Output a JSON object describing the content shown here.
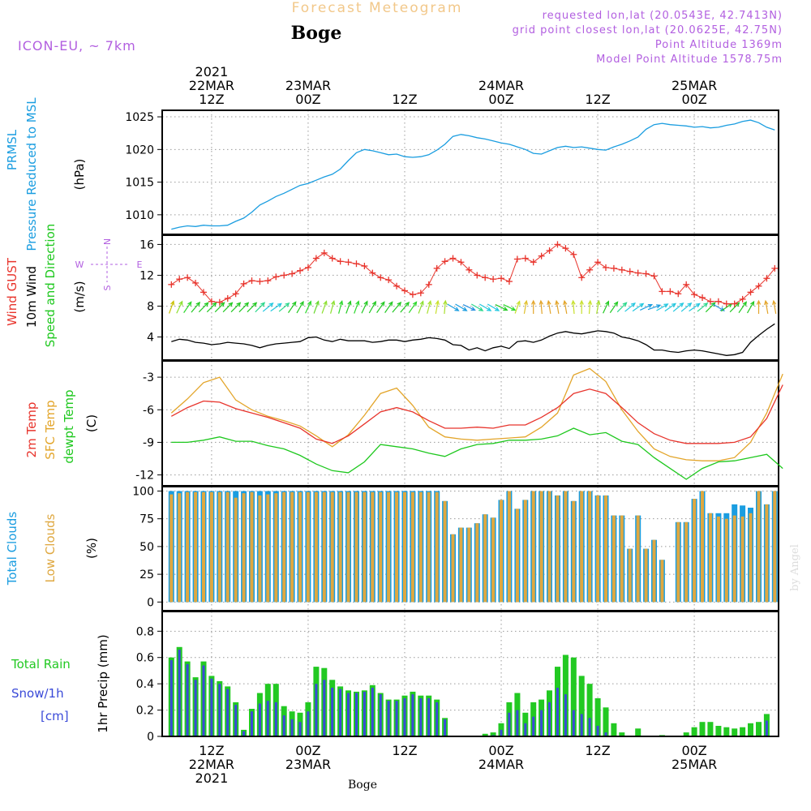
{
  "header": {
    "title": "Forecast Meteogram",
    "location": "Boge",
    "model": "ICON-EU, ~ 7km",
    "requested": "requested lon,lat (20.0543E, 42.7413N)",
    "grid_point": "grid point closest lon,lat (20.0625E, 42.75N)",
    "point_altitude": "Point Altitude 1369m",
    "model_altitude": "Model Point Altitude 1578.75m",
    "credit": "by Angel",
    "bottom_label": "Boge"
  },
  "colors": {
    "pressure": "#1a9de0",
    "gust": "#e8342c",
    "wind": "#000000",
    "temp": "#e8342c",
    "sfc": "#e3a52a",
    "dew": "#1ec81e",
    "total_cloud": "#1a9de0",
    "low_cloud": "#dfa840",
    "rain": "#22c922",
    "snow": "#3a4ad8",
    "title": "#f2c88a",
    "info": "#b25fe0"
  },
  "time_axis": {
    "top_labels": [
      {
        "h": 12,
        "lines": [
          "2021",
          "22MAR",
          "12Z"
        ]
      },
      {
        "h": 24,
        "lines": [
          "23MAR",
          "00Z"
        ]
      },
      {
        "h": 36,
        "lines": [
          "12Z"
        ]
      },
      {
        "h": 48,
        "lines": [
          "24MAR",
          "00Z"
        ]
      },
      {
        "h": 60,
        "lines": [
          "12Z"
        ]
      },
      {
        "h": 72,
        "lines": [
          "25MAR",
          "00Z"
        ]
      }
    ],
    "bottom_labels": [
      {
        "h": 12,
        "lines": [
          "12Z",
          "22MAR",
          "2021"
        ]
      },
      {
        "h": 24,
        "lines": [
          "00Z",
          "23MAR"
        ]
      },
      {
        "h": 36,
        "lines": [
          "12Z"
        ]
      },
      {
        "h": 48,
        "lines": [
          "00Z",
          "24MAR"
        ]
      },
      {
        "h": 60,
        "lines": [
          "12Z"
        ]
      },
      {
        "h": 72,
        "lines": [
          "00Z",
          "25MAR"
        ]
      }
    ]
  },
  "chart_data": [
    {
      "type": "line",
      "name": "pressure",
      "ylabel_lines": [
        "PRMSL",
        "Pressure Reduced to MSL"
      ],
      "unit": "(hPa)",
      "yticks": [
        1010,
        1015,
        1020,
        1025
      ],
      "ylim": [
        1007,
        1026
      ],
      "x_hours": [
        7,
        8,
        9,
        10,
        11,
        12,
        13,
        14,
        15,
        16,
        17,
        18,
        19,
        20,
        21,
        22,
        23,
        24,
        25,
        26,
        27,
        28,
        29,
        30,
        31,
        32,
        33,
        34,
        35,
        36,
        37,
        38,
        39,
        40,
        41,
        42,
        43,
        44,
        45,
        46,
        47,
        48,
        49,
        50,
        51,
        52,
        53,
        54,
        55,
        56,
        57,
        58,
        59,
        60,
        61,
        62,
        63,
        64,
        65,
        66,
        67,
        68,
        69,
        70,
        71,
        72,
        73,
        74,
        75,
        76,
        77,
        78,
        79,
        80,
        81,
        82
      ],
      "values": [
        1007.8,
        1008.1,
        1008.3,
        1008.2,
        1008.4,
        1008.3,
        1008.3,
        1008.4,
        1009.0,
        1009.5,
        1010.4,
        1011.5,
        1012.1,
        1012.8,
        1013.3,
        1013.9,
        1014.5,
        1014.8,
        1015.3,
        1015.8,
        1016.2,
        1017.0,
        1018.3,
        1019.5,
        1020.0,
        1019.8,
        1019.5,
        1019.2,
        1019.3,
        1018.9,
        1018.8,
        1018.9,
        1019.2,
        1019.9,
        1020.8,
        1022.0,
        1022.3,
        1022.1,
        1021.8,
        1021.6,
        1021.3,
        1021.0,
        1020.8,
        1020.4,
        1020.0,
        1019.4,
        1019.3,
        1019.8,
        1020.3,
        1020.5,
        1020.3,
        1020.4,
        1020.2,
        1020.0,
        1019.9,
        1020.4,
        1020.8,
        1021.3,
        1021.9,
        1023.1,
        1023.8,
        1024.0,
        1023.8,
        1023.7,
        1023.6,
        1023.4,
        1023.5,
        1023.3,
        1023.4,
        1023.7,
        1023.9,
        1024.3,
        1024.5,
        1024.1,
        1023.4,
        1023.0
      ]
    },
    {
      "type": "line",
      "name": "wind",
      "ylabel_lines": [
        "Wind GUST",
        "10m Wind",
        "Speed and Direction"
      ],
      "unit": "(m/s)",
      "compass": [
        "N",
        "S",
        "W",
        "E"
      ],
      "yticks": [
        4,
        8,
        12,
        16
      ],
      "ylim": [
        1,
        17.2
      ],
      "x_hours": [
        7,
        8,
        9,
        10,
        11,
        12,
        13,
        14,
        15,
        16,
        17,
        18,
        19,
        20,
        21,
        22,
        23,
        24,
        25,
        26,
        27,
        28,
        29,
        30,
        31,
        32,
        33,
        34,
        35,
        36,
        37,
        38,
        39,
        40,
        41,
        42,
        43,
        44,
        45,
        46,
        47,
        48,
        49,
        50,
        51,
        52,
        53,
        54,
        55,
        56,
        57,
        58,
        59,
        60,
        61,
        62,
        63,
        64,
        65,
        66,
        67,
        68,
        69,
        70,
        71,
        72,
        73,
        74,
        75,
        76,
        77,
        78,
        79,
        80,
        81,
        82
      ],
      "gust": [
        10.8,
        11.5,
        11.7,
        11.0,
        9.8,
        8.6,
        8.5,
        9.0,
        9.6,
        10.9,
        11.3,
        11.2,
        11.3,
        11.8,
        12.0,
        12.2,
        12.6,
        13.0,
        14.2,
        14.9,
        14.2,
        13.8,
        13.7,
        13.5,
        13.2,
        12.3,
        11.7,
        11.4,
        10.6,
        10.0,
        9.5,
        9.7,
        10.8,
        12.9,
        13.8,
        14.2,
        13.7,
        12.7,
        12.0,
        11.7,
        11.5,
        11.6,
        11.2,
        14.1,
        14.2,
        13.7,
        14.5,
        15.2,
        16.0,
        15.5,
        14.7,
        11.7,
        12.7,
        13.7,
        13.0,
        12.9,
        12.7,
        12.5,
        12.3,
        12.2,
        11.9,
        9.9,
        9.9,
        9.6,
        10.8,
        9.5,
        9.1,
        8.6,
        8.6,
        8.3,
        8.3,
        8.9,
        9.8,
        10.6,
        11.6,
        12.9
      ],
      "speed": [
        3.4,
        3.7,
        3.6,
        3.3,
        3.2,
        3.0,
        3.1,
        3.3,
        3.2,
        3.1,
        2.9,
        2.6,
        2.9,
        3.1,
        3.2,
        3.3,
        3.4,
        3.9,
        4.0,
        3.6,
        3.4,
        3.7,
        3.5,
        3.5,
        3.5,
        3.3,
        3.4,
        3.6,
        3.6,
        3.4,
        3.6,
        3.7,
        3.9,
        3.8,
        3.6,
        3.0,
        2.9,
        2.3,
        2.6,
        2.2,
        2.6,
        2.8,
        2.5,
        3.4,
        3.5,
        3.3,
        3.6,
        4.1,
        4.5,
        4.7,
        4.5,
        4.4,
        4.6,
        4.8,
        4.7,
        4.5,
        4.0,
        3.8,
        3.5,
        3.0,
        2.3,
        2.3,
        2.1,
        2.0,
        2.2,
        2.3,
        2.2,
        2.0,
        1.8,
        1.6,
        1.7,
        2.0,
        3.3,
        4.2,
        5.0,
        5.7
      ],
      "arrow_colors": [
        "#c8c000",
        "#8ce02e",
        "#2cd82c",
        "#22c922",
        "#22c922",
        "#22c922",
        "#22c922",
        "#22c922",
        "#22c922",
        "#22c922",
        "#22c922",
        "#2cd88c",
        "#22c8e0",
        "#22c8e0",
        "#2cd88c",
        "#22c922",
        "#22c922",
        "#2cd82c",
        "#66d82c",
        "#8ce02e",
        "#8ce02e",
        "#2cd82c",
        "#22c922",
        "#2cd82c",
        "#22c922",
        "#22c922",
        "#22c922",
        "#22c922",
        "#22c922",
        "#22c922",
        "#2cd82c",
        "#8ce02e",
        "#a8e02c",
        "#c8e02c",
        "#a8e02c",
        "#1a9de0",
        "#1a9de0",
        "#2a90e0",
        "#2cd88c",
        "#22c8e0",
        "#22c8e0",
        "#22c922",
        "#2cd82c",
        "#c8e02c",
        "#e0c02c",
        "#e3a52a",
        "#e3a52a",
        "#e3a52a",
        "#e3a52a",
        "#e3a52a",
        "#c8e02c",
        "#c8e02c",
        "#c8e02c",
        "#a8e02c",
        "#22c922",
        "#22c922",
        "#2cd88c",
        "#22c8e0",
        "#22c8e0",
        "#1a9de0",
        "#1a9de0",
        "#22c8e0",
        "#22c8e0",
        "#22c8e0",
        "#22c8e0",
        "#22c8e0",
        "#2cd88c",
        "#22c922",
        "#2a90e0",
        "#22c922",
        "#22c922",
        "#22c922",
        "#22c922",
        "#e3a52a",
        "#e3a52a",
        "#e3a52a"
      ],
      "arrow_dirs_deg": [
        200,
        205,
        215,
        220,
        225,
        225,
        225,
        225,
        225,
        225,
        225,
        225,
        230,
        235,
        230,
        215,
        210,
        205,
        200,
        200,
        195,
        195,
        200,
        200,
        205,
        210,
        215,
        215,
        220,
        220,
        215,
        200,
        195,
        190,
        185,
        300,
        300,
        295,
        300,
        300,
        300,
        295,
        295,
        200,
        190,
        180,
        175,
        170,
        170,
        170,
        175,
        180,
        185,
        190,
        205,
        215,
        225,
        230,
        235,
        245,
        250,
        240,
        235,
        230,
        230,
        235,
        230,
        225,
        300,
        235,
        225,
        215,
        210,
        180,
        170,
        170
      ]
    },
    {
      "type": "line",
      "name": "temperature",
      "ylabel_lines": [
        "2m Temp",
        "SFC Temp",
        "dewpt Temp"
      ],
      "unit": "(C)",
      "yticks": [
        -3,
        -6,
        -9,
        -12
      ],
      "ylim": [
        -13,
        -1.5
      ],
      "x_hours": [
        7,
        9,
        11,
        13,
        15,
        17,
        19,
        21,
        23,
        25,
        27,
        29,
        31,
        33,
        35,
        37,
        39,
        41,
        43,
        45,
        47,
        49,
        51,
        53,
        55,
        57,
        59,
        61,
        63,
        65,
        67,
        69,
        71,
        73,
        75,
        77,
        79,
        81,
        83
      ],
      "temp": [
        -6.6,
        -5.8,
        -5.2,
        -5.3,
        -5.9,
        -6.3,
        -6.7,
        -7.2,
        -7.7,
        -8.7,
        -9.1,
        -8.4,
        -7.3,
        -6.2,
        -5.8,
        -6.2,
        -7.0,
        -7.7,
        -7.7,
        -7.6,
        -7.7,
        -7.4,
        -7.4,
        -6.7,
        -5.8,
        -4.5,
        -4.1,
        -4.5,
        -5.8,
        -7.2,
        -8.2,
        -8.8,
        -9.1,
        -9.1,
        -9.1,
        -9.0,
        -8.5,
        -6.8,
        -3.7
      ],
      "sfc": [
        -6.3,
        -5.0,
        -3.5,
        -3.0,
        -5.1,
        -6.0,
        -6.6,
        -7.0,
        -7.5,
        -8.4,
        -9.4,
        -8.3,
        -6.5,
        -4.5,
        -4.0,
        -5.6,
        -7.6,
        -8.5,
        -8.7,
        -8.8,
        -8.7,
        -8.6,
        -8.5,
        -7.6,
        -6.3,
        -2.8,
        -2.2,
        -3.4,
        -6.0,
        -8.0,
        -9.6,
        -10.3,
        -10.6,
        -10.7,
        -10.7,
        -10.4,
        -9.0,
        -6.3,
        -2.7
      ],
      "dew": [
        -9.0,
        -9.0,
        -8.8,
        -8.5,
        -8.9,
        -8.9,
        -9.3,
        -9.6,
        -10.2,
        -11.0,
        -11.6,
        -11.8,
        -10.8,
        -9.2,
        -9.4,
        -9.6,
        -10.0,
        -10.3,
        -9.6,
        -9.2,
        -9.1,
        -8.8,
        -8.8,
        -8.7,
        -8.4,
        -7.7,
        -8.3,
        -8.1,
        -8.9,
        -9.2,
        -10.4,
        -11.4,
        -12.4,
        -11.4,
        -10.8,
        -10.7,
        -10.4,
        -10.1,
        -11.4
      ]
    },
    {
      "type": "bar",
      "name": "clouds",
      "ylabel_lines": [
        "Total Clouds",
        "Low Clouds"
      ],
      "unit": "(%)",
      "yticks": [
        0,
        25,
        50,
        75,
        100
      ],
      "ylim": [
        0,
        100
      ],
      "x_hours": [
        7,
        8,
        9,
        10,
        11,
        12,
        13,
        14,
        15,
        16,
        17,
        18,
        19,
        20,
        21,
        22,
        23,
        24,
        25,
        26,
        27,
        28,
        29,
        30,
        31,
        32,
        33,
        34,
        35,
        36,
        37,
        38,
        39,
        40,
        41,
        42,
        43,
        44,
        45,
        46,
        47,
        48,
        49,
        50,
        51,
        52,
        53,
        54,
        55,
        56,
        57,
        58,
        59,
        60,
        61,
        62,
        63,
        64,
        65,
        66,
        67,
        68,
        69,
        70,
        71,
        72,
        73,
        74,
        75,
        76,
        77,
        78,
        79,
        80,
        81,
        82
      ],
      "total": [
        100,
        100,
        100,
        100,
        100,
        100,
        100,
        100,
        100,
        100,
        100,
        100,
        100,
        100,
        100,
        100,
        100,
        100,
        100,
        100,
        100,
        100,
        100,
        100,
        100,
        100,
        100,
        100,
        100,
        100,
        100,
        100,
        100,
        100,
        91,
        61,
        67,
        67,
        71,
        79,
        76,
        92,
        100,
        84,
        92,
        100,
        100,
        100,
        96,
        100,
        91,
        100,
        100,
        96,
        96,
        78,
        78,
        48,
        78,
        48,
        56,
        38,
        0,
        72,
        72,
        93,
        100,
        80,
        80,
        80,
        88,
        87,
        85,
        100,
        88,
        100
      ],
      "low": [
        97,
        98,
        99,
        99,
        99,
        99,
        99,
        99,
        94,
        98,
        99,
        96,
        97,
        98,
        99,
        99,
        99,
        99,
        99,
        99,
        99,
        99,
        99,
        99,
        99,
        99,
        99,
        99,
        99,
        99,
        99,
        99,
        99,
        99,
        91,
        61,
        67,
        67,
        71,
        79,
        76,
        92,
        100,
        84,
        92,
        100,
        100,
        100,
        96,
        100,
        91,
        100,
        100,
        96,
        96,
        78,
        78,
        48,
        78,
        48,
        56,
        38,
        0,
        72,
        72,
        93,
        100,
        80,
        77,
        75,
        78,
        77,
        80,
        100,
        88,
        100
      ]
    },
    {
      "type": "bar",
      "name": "precipitation",
      "left_legend": [
        "Total Rain",
        "Snow/1h",
        "[cm]"
      ],
      "ylabel": "1hr Precip (mm)",
      "yticks": [
        0,
        0.2,
        0.4,
        0.6,
        0.8
      ],
      "ylim": [
        0,
        0.95
      ],
      "x_hours": [
        7,
        8,
        9,
        10,
        11,
        12,
        13,
        14,
        15,
        16,
        17,
        18,
        19,
        20,
        21,
        22,
        23,
        24,
        25,
        26,
        27,
        28,
        29,
        30,
        31,
        32,
        33,
        34,
        35,
        36,
        37,
        38,
        39,
        40,
        41,
        42,
        43,
        44,
        45,
        46,
        47,
        48,
        49,
        50,
        51,
        52,
        53,
        54,
        55,
        56,
        57,
        58,
        59,
        60,
        61,
        62,
        63,
        64,
        65,
        66,
        67,
        68,
        69,
        70,
        71,
        72,
        73,
        74,
        75,
        76,
        77,
        78,
        79,
        80,
        81,
        82
      ],
      "rain": [
        0.6,
        0.68,
        0.57,
        0.45,
        0.57,
        0.46,
        0.42,
        0.38,
        0.26,
        0.05,
        0.21,
        0.33,
        0.4,
        0.4,
        0.23,
        0.19,
        0.18,
        0.26,
        0.53,
        0.52,
        0.43,
        0.38,
        0.35,
        0.34,
        0.35,
        0.39,
        0.33,
        0.28,
        0.28,
        0.31,
        0.34,
        0.31,
        0.31,
        0.28,
        0.14,
        0,
        0,
        0,
        0,
        0.02,
        0.03,
        0.1,
        0.26,
        0.33,
        0.18,
        0.26,
        0.28,
        0.35,
        0.53,
        0.62,
        0.6,
        0.46,
        0.4,
        0.29,
        0.22,
        0.1,
        0.03,
        0,
        0.06,
        0,
        0,
        0.01,
        0,
        0,
        0.03,
        0.07,
        0.11,
        0.11,
        0.08,
        0.07,
        0.06,
        0.07,
        0.1,
        0.11,
        0.17,
        0
      ],
      "snow": [
        0.58,
        0.66,
        0.55,
        0.43,
        0.54,
        0.44,
        0.4,
        0.36,
        0.24,
        0.04,
        0.19,
        0.25,
        0.27,
        0.26,
        0.16,
        0.13,
        0.11,
        0.19,
        0.4,
        0.43,
        0.37,
        0.36,
        0.33,
        0.33,
        0.34,
        0.37,
        0.32,
        0.27,
        0.27,
        0.29,
        0.32,
        0.29,
        0.29,
        0.26,
        0.13,
        0,
        0,
        0,
        0,
        0,
        0.01,
        0.05,
        0.18,
        0.2,
        0.1,
        0.15,
        0.2,
        0.26,
        0.37,
        0.32,
        0.2,
        0.17,
        0.14,
        0.08,
        0.03,
        0,
        0,
        0,
        0,
        0,
        0,
        0,
        0,
        0,
        0,
        0,
        0,
        0,
        0,
        0,
        0,
        0,
        0,
        0,
        0.12,
        0
      ]
    }
  ]
}
